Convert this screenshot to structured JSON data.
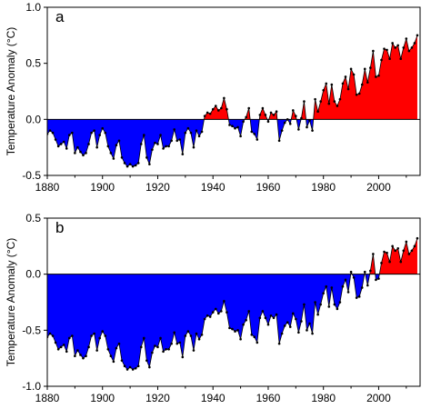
{
  "chart_data": [
    {
      "type": "area",
      "panel_label": "a",
      "ylabel": "Temperature Anomaly (°C)",
      "xlabel": "",
      "xlim": [
        1880,
        2015
      ],
      "ylim": [
        -0.5,
        1.0
      ],
      "x_ticks": [
        1880,
        1900,
        1920,
        1940,
        1960,
        1980,
        2000
      ],
      "y_ticks": [
        -0.5,
        0.0,
        0.5,
        1.0
      ],
      "y_tick_labels": [
        "-0.5",
        "0.0",
        "0.5",
        "1.0"
      ],
      "fill_colors": {
        "positive": "#ff0000",
        "negative": "#0000ff"
      },
      "grid": false,
      "x": [
        1880,
        1881,
        1882,
        1883,
        1884,
        1885,
        1886,
        1887,
        1888,
        1889,
        1890,
        1891,
        1892,
        1893,
        1894,
        1895,
        1896,
        1897,
        1898,
        1899,
        1900,
        1901,
        1902,
        1903,
        1904,
        1905,
        1906,
        1907,
        1908,
        1909,
        1910,
        1911,
        1912,
        1913,
        1914,
        1915,
        1916,
        1917,
        1918,
        1919,
        1920,
        1921,
        1922,
        1923,
        1924,
        1925,
        1926,
        1927,
        1928,
        1929,
        1930,
        1931,
        1932,
        1933,
        1934,
        1935,
        1936,
        1937,
        1938,
        1939,
        1940,
        1941,
        1942,
        1943,
        1944,
        1945,
        1946,
        1947,
        1948,
        1949,
        1950,
        1951,
        1952,
        1953,
        1954,
        1955,
        1956,
        1957,
        1958,
        1959,
        1960,
        1961,
        1962,
        1963,
        1964,
        1965,
        1966,
        1967,
        1968,
        1969,
        1970,
        1971,
        1972,
        1973,
        1974,
        1975,
        1976,
        1977,
        1978,
        1979,
        1980,
        1981,
        1982,
        1983,
        1984,
        1985,
        1986,
        1987,
        1988,
        1989,
        1990,
        1991,
        1992,
        1993,
        1994,
        1995,
        1996,
        1997,
        1998,
        1999,
        2000,
        2001,
        2002,
        2003,
        2004,
        2005,
        2006,
        2007,
        2008,
        2009,
        2010,
        2011,
        2012,
        2013,
        2014
      ],
      "values": [
        -0.13,
        -0.1,
        -0.12,
        -0.18,
        -0.24,
        -0.22,
        -0.2,
        -0.26,
        -0.14,
        -0.12,
        -0.3,
        -0.25,
        -0.29,
        -0.32,
        -0.3,
        -0.22,
        -0.12,
        -0.1,
        -0.25,
        -0.14,
        -0.08,
        -0.12,
        -0.24,
        -0.3,
        -0.35,
        -0.23,
        -0.19,
        -0.34,
        -0.39,
        -0.42,
        -0.4,
        -0.42,
        -0.41,
        -0.39,
        -0.22,
        -0.14,
        -0.34,
        -0.4,
        -0.27,
        -0.21,
        -0.22,
        -0.14,
        -0.26,
        -0.24,
        -0.24,
        -0.19,
        -0.09,
        -0.19,
        -0.18,
        -0.31,
        -0.12,
        -0.08,
        -0.12,
        -0.25,
        -0.1,
        -0.15,
        -0.11,
        0.03,
        0.06,
        0.05,
        0.09,
        0.12,
        0.08,
        0.1,
        0.19,
        0.09,
        -0.05,
        -0.06,
        -0.08,
        -0.07,
        -0.15,
        -0.02,
        0.02,
        0.1,
        -0.11,
        -0.13,
        -0.18,
        0.04,
        0.1,
        0.04,
        -0.02,
        0.06,
        0.04,
        0.07,
        -0.19,
        -0.1,
        -0.03,
        0.0,
        -0.04,
        0.08,
        0.03,
        -0.09,
        0.01,
        0.16,
        -0.07,
        -0.01,
        -0.1,
        0.18,
        0.07,
        0.16,
        0.26,
        0.32,
        0.14,
        0.31,
        0.16,
        0.12,
        0.18,
        0.32,
        0.38,
        0.27,
        0.45,
        0.4,
        0.22,
        0.23,
        0.31,
        0.45,
        0.33,
        0.46,
        0.61,
        0.38,
        0.39,
        0.53,
        0.63,
        0.62,
        0.54,
        0.68,
        0.64,
        0.66,
        0.54,
        0.64,
        0.72,
        0.61,
        0.64,
        0.68,
        0.75
      ]
    },
    {
      "type": "area",
      "panel_label": "b",
      "ylabel": "Temperature Anomaly (°C)",
      "xlabel": "",
      "xlim": [
        1880,
        2015
      ],
      "ylim": [
        -1.0,
        0.5
      ],
      "x_ticks": [
        1880,
        1900,
        1920,
        1940,
        1960,
        1980,
        2000
      ],
      "y_ticks": [
        -1.0,
        -0.5,
        0.0,
        0.5
      ],
      "y_tick_labels": [
        "-1.0",
        "-0.5",
        "0.0",
        "0.5"
      ],
      "fill_colors": {
        "positive": "#ff0000",
        "negative": "#0000ff"
      },
      "grid": false,
      "x": [
        1880,
        1881,
        1882,
        1883,
        1884,
        1885,
        1886,
        1887,
        1888,
        1889,
        1890,
        1891,
        1892,
        1893,
        1894,
        1895,
        1896,
        1897,
        1898,
        1899,
        1900,
        1901,
        1902,
        1903,
        1904,
        1905,
        1906,
        1907,
        1908,
        1909,
        1910,
        1911,
        1912,
        1913,
        1914,
        1915,
        1916,
        1917,
        1918,
        1919,
        1920,
        1921,
        1922,
        1923,
        1924,
        1925,
        1926,
        1927,
        1928,
        1929,
        1930,
        1931,
        1932,
        1933,
        1934,
        1935,
        1936,
        1937,
        1938,
        1939,
        1940,
        1941,
        1942,
        1943,
        1944,
        1945,
        1946,
        1947,
        1948,
        1949,
        1950,
        1951,
        1952,
        1953,
        1954,
        1955,
        1956,
        1957,
        1958,
        1959,
        1960,
        1961,
        1962,
        1963,
        1964,
        1965,
        1966,
        1967,
        1968,
        1969,
        1970,
        1971,
        1972,
        1973,
        1974,
        1975,
        1976,
        1977,
        1978,
        1979,
        1980,
        1981,
        1982,
        1983,
        1984,
        1985,
        1986,
        1987,
        1988,
        1989,
        1990,
        1991,
        1992,
        1993,
        1994,
        1995,
        1996,
        1997,
        1998,
        1999,
        2000,
        2001,
        2002,
        2003,
        2004,
        2005,
        2006,
        2007,
        2008,
        2009,
        2010,
        2011,
        2012,
        2013,
        2014
      ],
      "values": [
        -0.56,
        -0.53,
        -0.55,
        -0.61,
        -0.67,
        -0.65,
        -0.63,
        -0.69,
        -0.57,
        -0.55,
        -0.73,
        -0.68,
        -0.72,
        -0.75,
        -0.73,
        -0.65,
        -0.55,
        -0.53,
        -0.68,
        -0.57,
        -0.51,
        -0.55,
        -0.67,
        -0.73,
        -0.78,
        -0.66,
        -0.62,
        -0.77,
        -0.82,
        -0.85,
        -0.83,
        -0.85,
        -0.84,
        -0.82,
        -0.65,
        -0.57,
        -0.77,
        -0.83,
        -0.7,
        -0.64,
        -0.65,
        -0.57,
        -0.69,
        -0.67,
        -0.67,
        -0.62,
        -0.52,
        -0.62,
        -0.61,
        -0.74,
        -0.55,
        -0.51,
        -0.55,
        -0.68,
        -0.53,
        -0.58,
        -0.54,
        -0.4,
        -0.37,
        -0.38,
        -0.34,
        -0.31,
        -0.35,
        -0.33,
        -0.24,
        -0.34,
        -0.48,
        -0.49,
        -0.51,
        -0.5,
        -0.58,
        -0.45,
        -0.41,
        -0.33,
        -0.54,
        -0.56,
        -0.61,
        -0.39,
        -0.33,
        -0.39,
        -0.45,
        -0.37,
        -0.39,
        -0.36,
        -0.62,
        -0.53,
        -0.46,
        -0.43,
        -0.47,
        -0.35,
        -0.4,
        -0.52,
        -0.42,
        -0.27,
        -0.5,
        -0.44,
        -0.53,
        -0.25,
        -0.36,
        -0.27,
        -0.17,
        -0.11,
        -0.29,
        -0.12,
        -0.27,
        -0.31,
        -0.25,
        -0.11,
        -0.05,
        -0.16,
        0.02,
        -0.03,
        -0.21,
        -0.2,
        -0.12,
        0.02,
        -0.1,
        0.03,
        0.18,
        -0.05,
        -0.04,
        0.1,
        0.2,
        0.19,
        0.11,
        0.25,
        0.21,
        0.23,
        0.11,
        0.21,
        0.29,
        0.18,
        0.21,
        0.25,
        0.32
      ]
    }
  ],
  "x_tick_labels": [
    "1880",
    "1900",
    "1920",
    "1940",
    "1960",
    "1980",
    "2000"
  ]
}
